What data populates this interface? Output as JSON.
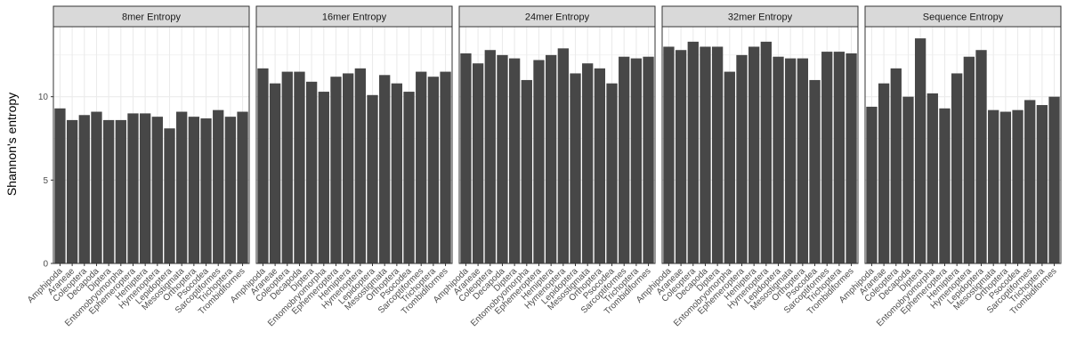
{
  "chart_data": {
    "type": "bar",
    "ylabel": "Shannon's entropy",
    "xlabel": "",
    "ylim": [
      0,
      14.2
    ],
    "yticks": [
      0,
      5,
      10
    ],
    "grid": true,
    "facet_strip_color": "#d9d9d9",
    "bar_color": "#474747",
    "categories": [
      "Amphipoda",
      "Araneae",
      "Coleoptera",
      "Decapoda",
      "Diptera",
      "Entomobryomorpha",
      "Ephemeroptera",
      "Hemiptera",
      "Hymenoptera",
      "Lepidoptera",
      "Mesostigmata",
      "Orthoptera",
      "Psocodea",
      "Sarcoptiformes",
      "Trichoptera",
      "Trombidiformes"
    ],
    "panels": [
      {
        "title": "8mer Entropy",
        "values": [
          9.3,
          8.6,
          8.9,
          9.1,
          8.6,
          8.6,
          9.0,
          9.0,
          8.8,
          8.1,
          9.1,
          8.8,
          8.7,
          9.2,
          8.8,
          9.1
        ]
      },
      {
        "title": "16mer Entropy",
        "values": [
          11.7,
          10.8,
          11.5,
          11.5,
          10.9,
          10.3,
          11.2,
          11.4,
          11.7,
          10.1,
          11.3,
          10.8,
          10.3,
          11.5,
          11.2,
          11.5
        ]
      },
      {
        "title": "24mer Entropy",
        "values": [
          12.6,
          12.0,
          12.8,
          12.5,
          12.3,
          11.0,
          12.2,
          12.5,
          12.9,
          11.4,
          12.0,
          11.7,
          10.8,
          12.4,
          12.3,
          12.4
        ]
      },
      {
        "title": "32mer Entropy",
        "values": [
          13.0,
          12.8,
          13.3,
          13.0,
          13.0,
          11.5,
          12.5,
          13.0,
          13.3,
          12.4,
          12.3,
          12.3,
          11.0,
          12.7,
          12.7,
          12.6
        ]
      },
      {
        "title": "Sequence Entropy",
        "values": [
          9.4,
          10.8,
          11.7,
          10.0,
          13.5,
          10.2,
          9.3,
          11.4,
          12.4,
          12.8,
          9.2,
          9.1,
          9.2,
          9.8,
          9.5,
          10.0
        ]
      }
    ]
  }
}
